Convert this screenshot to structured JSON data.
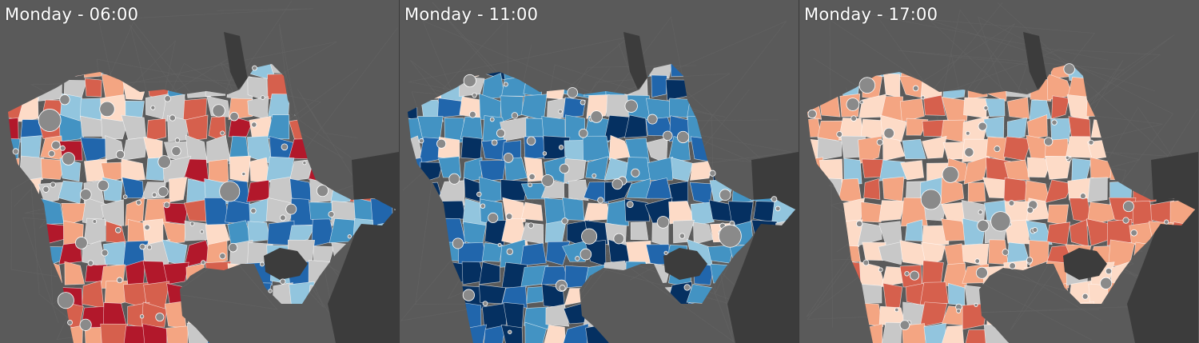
{
  "panels": [
    {
      "title": "Monday - 06:00",
      "scheme": "mixed"
    },
    {
      "title": "Monday - 11:00",
      "scheme": "blue"
    },
    {
      "title": "Monday - 17:00",
      "scheme": "red"
    }
  ],
  "colors": {
    "background": "#5a5a5a",
    "water": "#3c3c3c",
    "region_border": "#ffffff",
    "circle_fill": "#8a8a8a",
    "circle_stroke": "#ffffff",
    "dark_red": "#b2182b",
    "red": "#d6604d",
    "salmon": "#f4a582",
    "light_peach": "#fddbc7",
    "neutral_grey": "#c8c8c8",
    "light_blue": "#92c5de",
    "blue": "#4393c3",
    "mid_blue": "#2166ac",
    "dark_blue": "#053061"
  }
}
